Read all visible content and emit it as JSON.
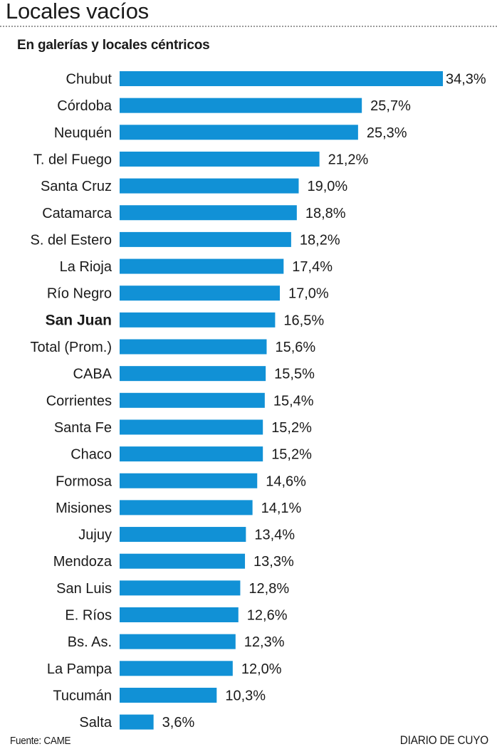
{
  "title": "Locales vacíos",
  "subtitle": "En galerías y locales céntricos",
  "footer": {
    "source": "Fuente: CAME",
    "brand": "DIARIO DE CUYO"
  },
  "colors": {
    "bar": "#1191d6",
    "text": "#1a1a1a"
  },
  "chart_data": {
    "type": "bar",
    "orientation": "horizontal",
    "unit": "%",
    "categories": [
      "Chubut",
      "Córdoba",
      "Neuquén",
      "T. del Fuego",
      "Santa Cruz",
      "Catamarca",
      "S. del Estero",
      "La Rioja",
      "Río Negro",
      "San Juan",
      "Total (Prom.)",
      "CABA",
      "Corrientes",
      "Santa Fe",
      "Chaco",
      "Formosa",
      "Misiones",
      "Jujuy",
      "Mendoza",
      "San Luis",
      "E. Ríos",
      "Bs. As.",
      "La Pampa",
      "Tucumán",
      "Salta"
    ],
    "values": [
      34.3,
      25.7,
      25.3,
      21.2,
      19.0,
      18.8,
      18.2,
      17.4,
      17.0,
      16.5,
      15.6,
      15.5,
      15.4,
      15.2,
      15.2,
      14.6,
      14.1,
      13.4,
      13.3,
      12.8,
      12.6,
      12.3,
      12.0,
      10.3,
      3.6
    ],
    "value_labels": [
      "34,3%",
      "25,7%",
      "25,3%",
      "21,2%",
      "19,0%",
      "18,8%",
      "18,2%",
      "17,4%",
      "17,0%",
      "16,5%",
      "15,6%",
      "15,5%",
      "15,4%",
      "15,2%",
      "15,2%",
      "14,6%",
      "14,1%",
      "13,4%",
      "13,3%",
      "12,8%",
      "12,6%",
      "12,3%",
      "12,0%",
      "10,3%",
      "3,6%"
    ],
    "highlight": "San Juan",
    "xlim": [
      0,
      34.3
    ],
    "grid": false,
    "xlabel": "",
    "ylabel": ""
  }
}
